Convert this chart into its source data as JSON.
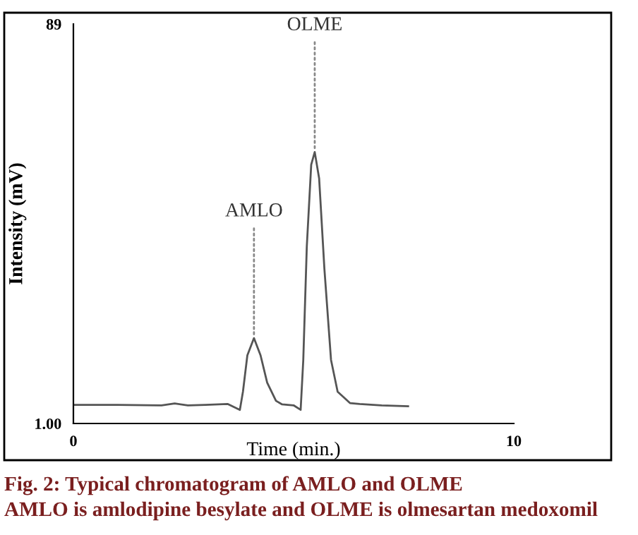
{
  "chart_data": {
    "type": "line",
    "xlabel": "Time (min.)",
    "ylabel": "Intensity (mV)",
    "x": [
      0,
      1,
      2,
      2.3,
      2.6,
      3.0,
      3.5,
      3.78,
      3.85,
      3.95,
      4.1,
      4.25,
      4.4,
      4.6,
      4.74,
      5.0,
      5.16,
      5.22,
      5.3,
      5.4,
      5.48,
      5.58,
      5.7,
      5.85,
      6.0,
      6.28,
      6.5,
      7.0,
      7.6
    ],
    "series": [
      {
        "color": "#555555",
        "values": [
          5.1,
          5.1,
          5.0,
          5.4,
          5.0,
          5.1,
          5.3,
          4.0,
          8,
          16,
          19.8,
          16,
          10,
          6,
          5.2,
          5.0,
          4.0,
          15,
          40,
          58,
          60.8,
          55,
          35,
          15,
          8,
          5.5,
          5.3,
          5.0,
          4.8
        ]
      }
    ],
    "xlim": [
      0,
      10
    ],
    "ylim": [
      1,
      89
    ],
    "xticks": [
      0,
      10
    ],
    "yticks": [
      {
        "value": 1,
        "label": "1.00"
      },
      89
    ],
    "grid": false,
    "legend": false,
    "marker": "none",
    "line_style": "solid",
    "annotations": [
      {
        "text": "AMLO",
        "x": 4.1,
        "y": 19.8
      },
      {
        "text": "OLME",
        "x": 5.48,
        "y": 60.8
      },
      "Fig. 2: Typical chromatogram of AMLO and OLME",
      "AMLO is amlodipine besylate and OLME is olmesartan medoxomil"
    ]
  }
}
